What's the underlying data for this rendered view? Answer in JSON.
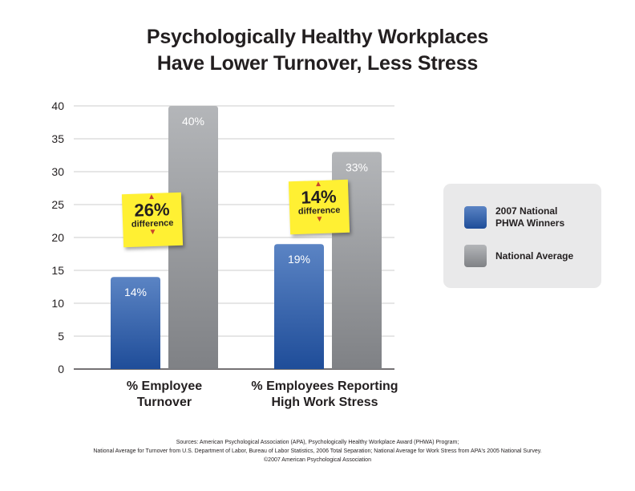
{
  "chart_data": {
    "type": "bar",
    "title_lines": [
      "Psychologically Healthy Workplaces",
      "Have Lower Turnover, Less Stress"
    ],
    "categories": [
      "% Employee\nTurnover",
      "% Employees Reporting\nHigh Work Stress"
    ],
    "series": [
      {
        "name": "2007 National\nPHWA Winners",
        "values": [
          14,
          19
        ],
        "labels": [
          "14%",
          "19%"
        ],
        "color": "#2e5ea8"
      },
      {
        "name": "National Average",
        "values": [
          40,
          33
        ],
        "labels": [
          "40%",
          "33%"
        ],
        "color": "#97999c"
      }
    ],
    "ylim": [
      0,
      40
    ],
    "yticks": [
      0,
      5,
      10,
      15,
      20,
      25,
      30,
      35,
      40
    ],
    "grid": true,
    "legend_position": "right",
    "annotations": [
      {
        "category": "% Employee\nTurnover",
        "value": "26%",
        "text": "difference"
      },
      {
        "category": "% Employees Reporting\nHigh Work Stress",
        "value": "14%",
        "text": "difference"
      }
    ]
  },
  "footer": {
    "sources": "Sources: American Psychological Association (APA), Psychologically Healthy Workplace Award (PHWA) Program;",
    "national_average": "National Average for Turnover from U.S. Department of Labor, Bureau of Labor Statistics, 2006 Total Separation; National Average for Work Stress from APA's 2005 National Survey.",
    "copyright": "©2007 American Psychological Association"
  }
}
